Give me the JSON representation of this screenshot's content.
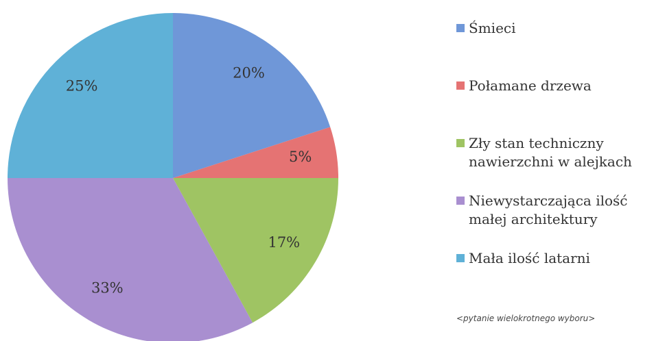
{
  "chart_data": {
    "type": "pie",
    "categories": [
      "Śmieci",
      "Połamane drzewa",
      "Zły stan techniczny nawierzchni w alejkach",
      "Niewystarczająca ilość małej architektury",
      "Mała ilość latarni"
    ],
    "values": [
      20,
      5,
      17,
      33,
      25
    ],
    "value_labels": [
      "20%",
      "5%",
      "17%",
      "33%",
      "25%"
    ],
    "colors": [
      "#6f97d8",
      "#e57373",
      "#9fc463",
      "#a98fd0",
      "#5fb1d7"
    ],
    "legend": "right",
    "note": "<pytanie wielokrotnego wyboru>"
  }
}
